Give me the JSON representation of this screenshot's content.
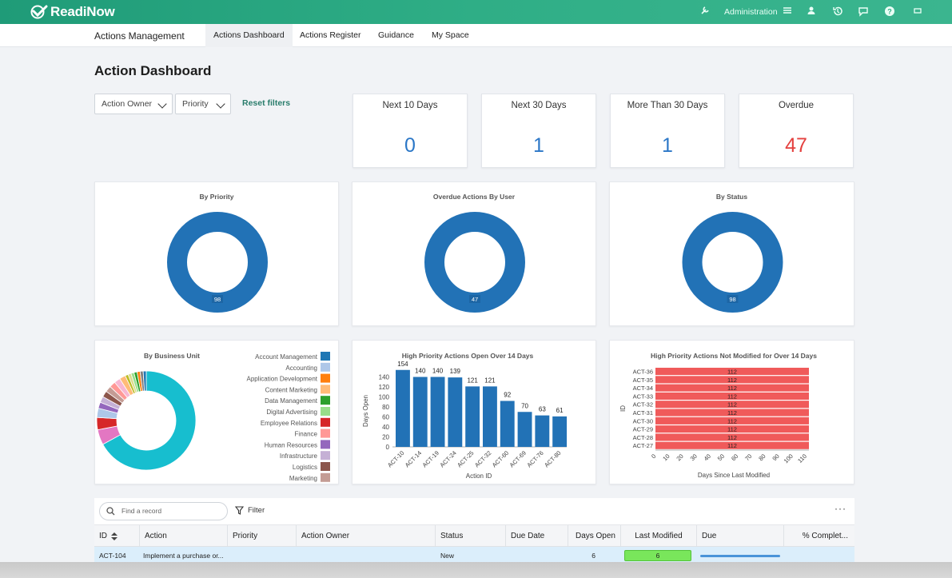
{
  "header": {
    "brand": "ReadiNow",
    "admin_label": "Administration",
    "colors": {
      "bar": "#2fae86"
    }
  },
  "nav": {
    "app_name": "Actions Management",
    "tabs": [
      {
        "label": "Actions Dashboard",
        "active": true
      },
      {
        "label": "Actions Register",
        "active": false
      },
      {
        "label": "Guidance",
        "active": false
      },
      {
        "label": "My Space",
        "active": false
      }
    ]
  },
  "page": {
    "title": "Action Dashboard"
  },
  "filters": {
    "action_owner": "Action Owner",
    "priority": "Priority",
    "reset": "Reset filters"
  },
  "kpis": [
    {
      "label": "Next 10 Days",
      "value": "0",
      "color": "#2b77c7"
    },
    {
      "label": "Next 30 Days",
      "value": "1",
      "color": "#2b77c7"
    },
    {
      "label": "More Than 30 Days",
      "value": "1",
      "color": "#2b77c7"
    },
    {
      "label": "Overdue",
      "value": "47",
      "color": "#e4413f"
    }
  ],
  "chart_data": [
    {
      "type": "pie",
      "title": "By Priority",
      "labels": [
        ""
      ],
      "values": [
        98
      ],
      "colors": [
        "#2272b6"
      ],
      "donut": true
    },
    {
      "type": "pie",
      "title": "Overdue Actions By User",
      "labels": [
        ""
      ],
      "values": [
        47
      ],
      "colors": [
        "#2272b6"
      ],
      "donut": true
    },
    {
      "type": "pie",
      "title": "By Status",
      "labels": [
        ""
      ],
      "values": [
        98
      ],
      "colors": [
        "#2272b6"
      ],
      "donut": true
    },
    {
      "type": "pie",
      "title": "By Business Unit",
      "donut": true,
      "legend": [
        "Account Management",
        "Accounting",
        "Application Development",
        "Content Marketing",
        "Data Management",
        "Digital Advertising",
        "Employee Relations",
        "Finance",
        "Human Resources",
        "Infrastructure",
        "Logistics",
        "Marketing"
      ],
      "legend_colors": [
        "#1f77b4",
        "#aec7e8",
        "#ff7f0e",
        "#ffbb78",
        "#2ca02c",
        "#98df8a",
        "#d62728",
        "#ff9896",
        "#9467bd",
        "#c5b0d5",
        "#8c564b",
        "#c49c94"
      ],
      "values": [
        67,
        5,
        4,
        3,
        2,
        2,
        2,
        2,
        2,
        2,
        2,
        1,
        1,
        1,
        1,
        1,
        1,
        1
      ],
      "colors": [
        "#17becf",
        "#e377c2",
        "#d62728",
        "#aec7e8",
        "#9467bd",
        "#c5b0d5",
        "#8c564b",
        "#c49c94",
        "#ff9896",
        "#f7b6d2",
        "#ffbb78",
        "#bcbd22",
        "#dbdb8d",
        "#98df8a",
        "#2ca02c",
        "#ff7f0e",
        "#7f7f7f",
        "#1f77b4"
      ]
    },
    {
      "type": "bar",
      "title": "High Priority Actions Open Over 14 Days",
      "xlabel": "Action ID",
      "ylabel": "Days Open",
      "categories": [
        "ACT-10",
        "ACT-14",
        "ACT-19",
        "ACT-24",
        "ACT-25",
        "ACT-32",
        "ACT-60",
        "ACT-69",
        "ACT-76",
        "ACT-80"
      ],
      "values": [
        154,
        140,
        140,
        139,
        121,
        121,
        92,
        70,
        63,
        61
      ],
      "yticks": [
        0,
        20,
        40,
        60,
        80,
        100,
        120,
        140
      ],
      "ylim": [
        0,
        160
      ],
      "color": "#2272b6"
    },
    {
      "type": "bar",
      "orientation": "horizontal",
      "title": "High Priority Actions Not Modified for Over 14 Days",
      "xlabel": "Days Since Last Modified",
      "ylabel": "ID",
      "categories": [
        "ACT-36",
        "ACT-35",
        "ACT-34",
        "ACT-33",
        "ACT-32",
        "ACT-31",
        "ACT-30",
        "ACT-29",
        "ACT-28",
        "ACT-27"
      ],
      "values": [
        112,
        112,
        112,
        112,
        112,
        112,
        112,
        112,
        112,
        112
      ],
      "xticks": [
        0,
        10,
        20,
        30,
        40,
        50,
        60,
        70,
        80,
        90,
        100,
        110
      ],
      "xlim": [
        0,
        112
      ],
      "color": "#f05a5a"
    }
  ],
  "table": {
    "search_placeholder": "Find a record",
    "filter_label": "Filter",
    "more": "···",
    "columns": [
      "ID",
      "Action",
      "Priority",
      "Action Owner",
      "Status",
      "Due Date",
      "Days Open",
      "Last Modified",
      "Due",
      "% Complet..."
    ],
    "rows": [
      {
        "id": "ACT-104",
        "action": "Implement a purchase or...",
        "priority": "",
        "owner": "",
        "status": "New",
        "due_date": "",
        "days_open": "6",
        "last_modified": "6",
        "due": 1.0,
        "pct": ""
      }
    ]
  }
}
